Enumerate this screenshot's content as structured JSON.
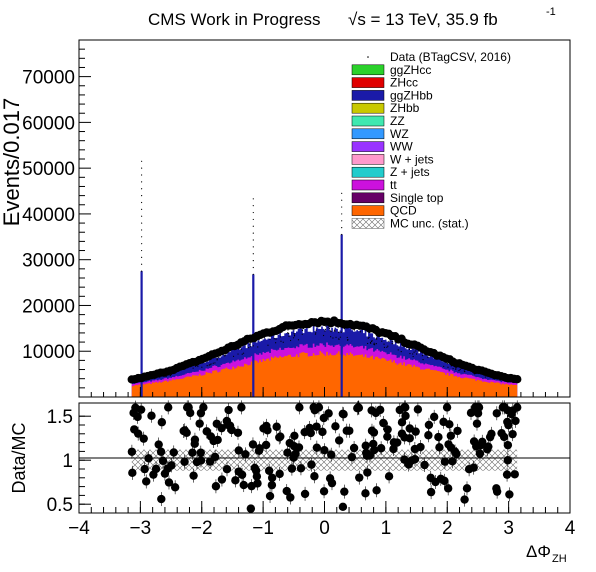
{
  "header": {
    "title": "CMS Work in Progress",
    "energy_prefix": "√s = 13 TeV, 35.9 fb",
    "energy_exponent": "-1"
  },
  "chart_data": [
    {
      "type": "bar",
      "panel": "main",
      "ylabel": "Events/0.017",
      "xlim": [
        -4,
        4
      ],
      "ylim": [
        0,
        78000
      ],
      "x_ticks": [
        "−4",
        "−3",
        "−2",
        "−1",
        "0",
        "1",
        "2",
        "3",
        "4"
      ],
      "x_tick_values": [
        -4,
        -3,
        -2,
        -1,
        0,
        1,
        2,
        3,
        4
      ],
      "y_ticks": [
        "10000",
        "20000",
        "30000",
        "40000",
        "50000",
        "60000",
        "70000"
      ],
      "y_tick_values": [
        10000,
        20000,
        30000,
        40000,
        50000,
        60000,
        70000
      ],
      "x_range_filled": [
        -3.14,
        3.14
      ],
      "background_peak": {
        "x": 0.0,
        "qcd": 9500,
        "total_mc": 15000,
        "data": 16500
      },
      "background_edge": {
        "qcd": 2500,
        "total_mc": 3600,
        "data": 3800
      },
      "spikes": [
        {
          "x": -2.98,
          "value": 27500,
          "data_max": 52000
        },
        {
          "x": -1.16,
          "value": 26800,
          "data_max": 44000
        },
        {
          "x": 0.28,
          "value": 35500,
          "data_max": 46000
        }
      ],
      "legend": {
        "position": "top-right",
        "entries": [
          {
            "label": "Data (BTagCSV, 2016)",
            "style": "marker",
            "color": "#000000"
          },
          {
            "label": "ggZHcc",
            "style": "fill",
            "color": "#2bd12b"
          },
          {
            "label": "ZHcc",
            "style": "fill",
            "color": "#e00000"
          },
          {
            "label": "ggZHbb",
            "style": "fill",
            "color": "#1a1aa8"
          },
          {
            "label": "ZHbb",
            "style": "fill",
            "color": "#c9c900"
          },
          {
            "label": "ZZ",
            "style": "fill",
            "color": "#40e8b0"
          },
          {
            "label": "WZ",
            "style": "fill",
            "color": "#3399ff"
          },
          {
            "label": "WW",
            "style": "fill",
            "color": "#9933ff"
          },
          {
            "label": "W + jets",
            "style": "fill",
            "color": "#ff99cc"
          },
          {
            "label": "Z + jets",
            "style": "fill",
            "color": "#22cccc"
          },
          {
            "label": "tt",
            "style": "fill",
            "color": "#cc11dd"
          },
          {
            "label": "Single top",
            "style": "fill",
            "color": "#660066"
          },
          {
            "label": "QCD",
            "style": "fill",
            "color": "#ff6600"
          },
          {
            "label": "MC unc. (stat.)",
            "style": "hatch",
            "color": "#555555"
          }
        ]
      }
    },
    {
      "type": "scatter",
      "panel": "ratio",
      "xlabel": "ΔΦ",
      "xlabel_sub": "ZH",
      "ylabel": "Data/MC",
      "xlim": [
        -4,
        4
      ],
      "ylim": [
        0.4,
        1.65
      ],
      "y_ticks": [
        "0.5",
        "1",
        "1.5"
      ],
      "y_tick_values": [
        0.5,
        1,
        1.5
      ],
      "reference_line": 1,
      "outliers": [
        {
          "x": -1.2,
          "y": 0.45
        },
        {
          "x": 0.3,
          "y": 0.47
        },
        {
          "x": 2.8,
          "y": 0.68
        },
        {
          "x": 3.1,
          "y": 0.84
        },
        {
          "x": -3.1,
          "y": 1.35
        }
      ]
    }
  ]
}
